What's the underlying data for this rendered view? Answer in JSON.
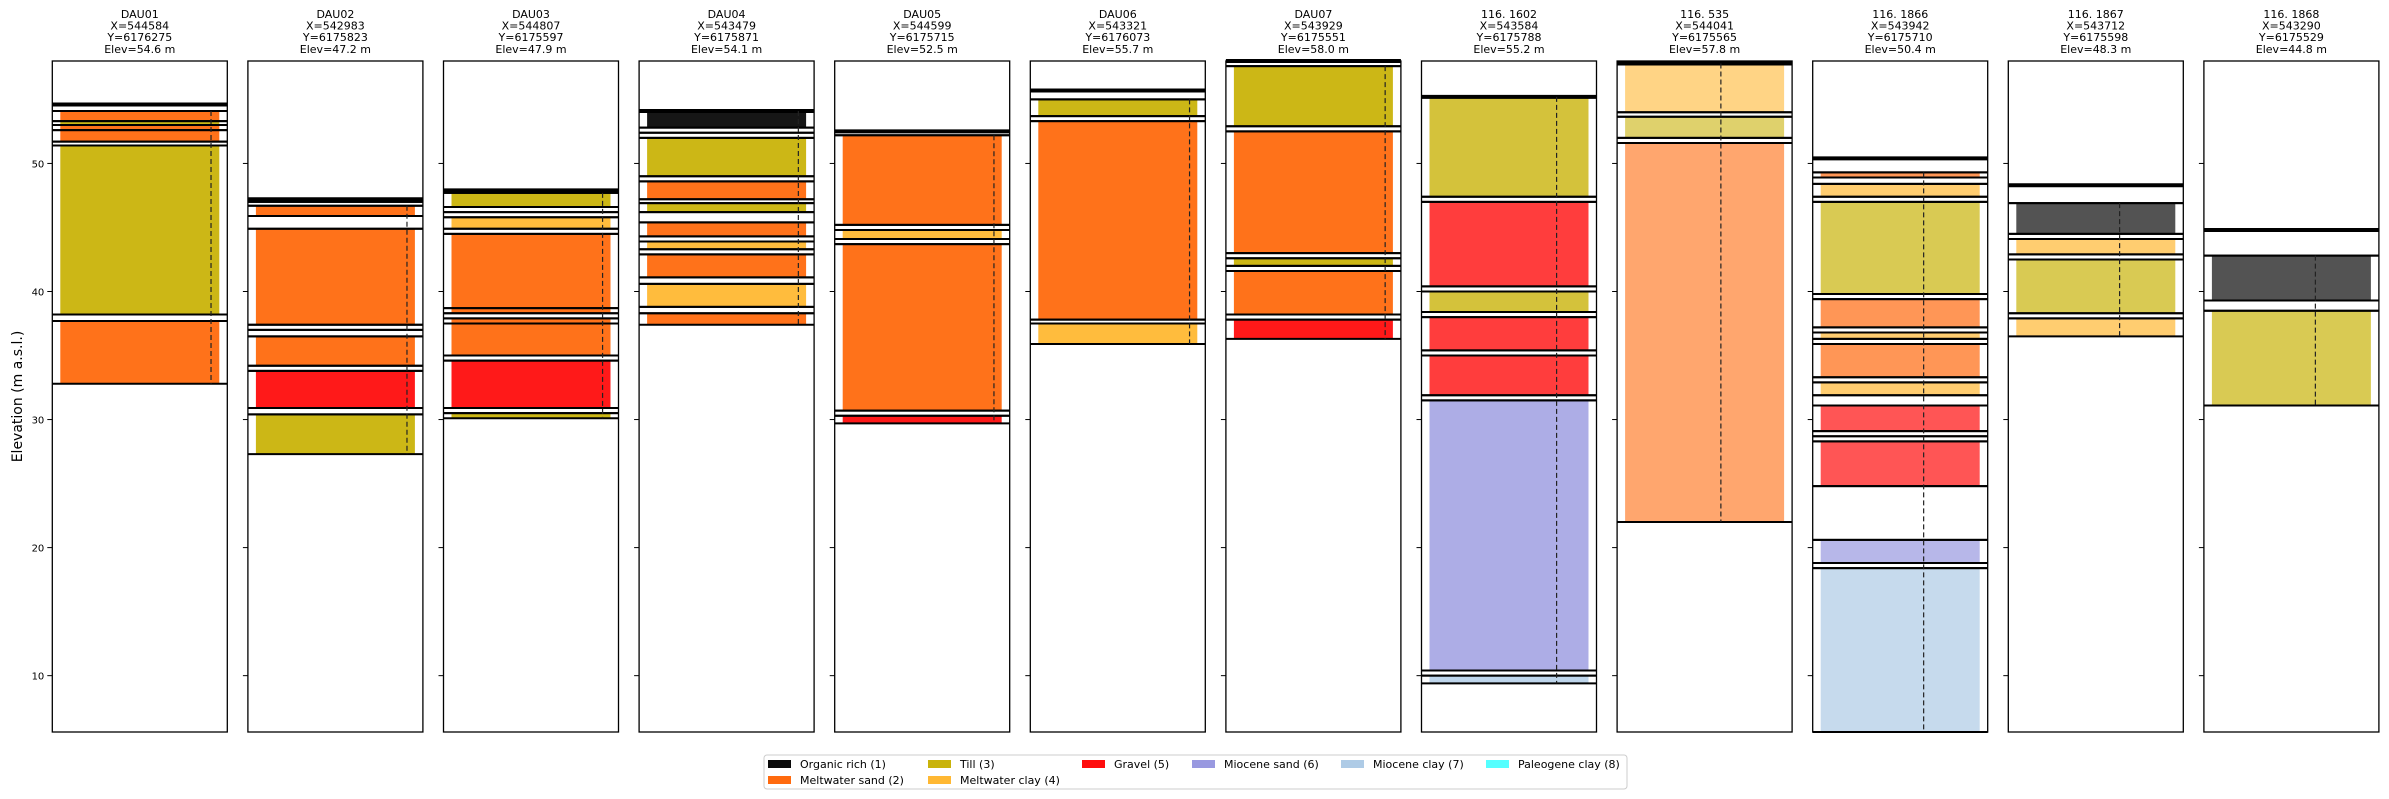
{
  "chart_data": {
    "type": "borehole-log",
    "ylabel": "Elevation (m a.s.l.)",
    "ylim": [
      5.6,
      58.0
    ],
    "yticks": [
      10,
      20,
      30,
      40,
      50
    ],
    "grid": false,
    "legend_position": "bottom-center",
    "legend": [
      {
        "code": 1,
        "label": "Organic rich (1)",
        "color": "#0a0a0a"
      },
      {
        "code": 2,
        "label": "Meltwater sand (2)",
        "color": "#ff6a0e"
      },
      {
        "code": 3,
        "label": "Till (3)",
        "color": "#c9b30a"
      },
      {
        "code": 4,
        "label": "Meltwater clay (4)",
        "color": "#ffb833"
      },
      {
        "code": 5,
        "label": "Gravel (5)",
        "color": "#ff0d0d"
      },
      {
        "code": 6,
        "label": "Miocene sand (6)",
        "color": "#9999e0"
      },
      {
        "code": 7,
        "label": "Miocene clay (7)",
        "color": "#aecbe6"
      },
      {
        "code": 8,
        "label": "Paleogene clay (8)",
        "color": "#55ffff"
      }
    ],
    "boreholes": [
      {
        "name": "DAU01",
        "x_label": "X=544584",
        "y_label": "Y=6176275",
        "elev_label": "Elev=54.6 m",
        "fill_alpha": 0.95,
        "layers": [
          [
            54.6,
            54.1,
            null
          ],
          [
            54.1,
            53.3,
            2
          ],
          [
            53.3,
            53.0,
            3
          ],
          [
            53.0,
            52.6,
            2
          ],
          [
            52.6,
            51.7,
            2
          ],
          [
            51.7,
            51.4,
            null
          ],
          [
            51.4,
            38.2,
            3
          ],
          [
            38.2,
            37.7,
            null
          ],
          [
            37.7,
            32.8,
            2
          ]
        ]
      },
      {
        "name": "DAU02",
        "x_label": "X=542983",
        "y_label": "Y=6175823",
        "elev_label": "Elev=47.2 m",
        "fill_alpha": 0.95,
        "layers": [
          [
            47.2,
            47.0,
            null
          ],
          [
            47.0,
            46.7,
            null
          ],
          [
            46.7,
            45.9,
            2
          ],
          [
            45.9,
            44.9,
            null
          ],
          [
            44.9,
            37.4,
            2
          ],
          [
            37.4,
            37.0,
            null
          ],
          [
            37.0,
            36.5,
            null
          ],
          [
            36.5,
            34.2,
            2
          ],
          [
            34.2,
            33.8,
            null
          ],
          [
            33.8,
            30.9,
            5
          ],
          [
            30.9,
            30.4,
            null
          ],
          [
            30.4,
            27.3,
            3
          ]
        ]
      },
      {
        "name": "DAU03",
        "x_label": "X=544807",
        "y_label": "Y=6175597",
        "elev_label": "Elev=47.9 m",
        "fill_alpha": 0.95,
        "layers": [
          [
            47.9,
            47.7,
            null
          ],
          [
            47.7,
            46.6,
            3
          ],
          [
            46.6,
            46.2,
            null
          ],
          [
            46.2,
            45.8,
            null
          ],
          [
            45.8,
            44.9,
            4
          ],
          [
            44.9,
            44.5,
            null
          ],
          [
            44.5,
            38.7,
            2
          ],
          [
            38.7,
            38.3,
            2
          ],
          [
            38.3,
            37.9,
            null
          ],
          [
            37.9,
            37.5,
            2
          ],
          [
            37.5,
            35.0,
            2
          ],
          [
            35.0,
            34.6,
            null
          ],
          [
            34.6,
            30.9,
            5
          ],
          [
            30.9,
            30.5,
            null
          ],
          [
            30.5,
            30.1,
            3
          ]
        ]
      },
      {
        "name": "DAU04",
        "x_label": "X=543479",
        "y_label": "Y=6175871",
        "elev_label": "Elev=54.1 m",
        "fill_alpha": 0.95,
        "layers": [
          [
            54.1,
            52.8,
            1
          ],
          [
            52.8,
            52.4,
            null
          ],
          [
            52.4,
            52.0,
            null
          ],
          [
            52.0,
            49.0,
            3
          ],
          [
            49.0,
            48.6,
            null
          ],
          [
            48.6,
            47.2,
            2
          ],
          [
            47.2,
            46.9,
            null
          ],
          [
            46.9,
            46.2,
            3
          ],
          [
            46.2,
            45.4,
            null
          ],
          [
            45.4,
            44.3,
            2
          ],
          [
            44.3,
            43.9,
            null
          ],
          [
            43.9,
            43.3,
            4
          ],
          [
            43.3,
            42.9,
            null
          ],
          [
            42.9,
            41.1,
            2
          ],
          [
            41.1,
            40.6,
            null
          ],
          [
            40.6,
            38.8,
            4
          ],
          [
            38.8,
            38.3,
            null
          ],
          [
            38.3,
            37.4,
            2
          ]
        ]
      },
      {
        "name": "DAU05",
        "x_label": "X=544599",
        "y_label": "Y=6175715",
        "elev_label": "Elev=52.5 m",
        "fill_alpha": 0.95,
        "layers": [
          [
            52.5,
            52.2,
            null
          ],
          [
            52.2,
            45.2,
            2
          ],
          [
            45.2,
            44.8,
            null
          ],
          [
            44.8,
            44.1,
            4
          ],
          [
            44.1,
            43.7,
            null
          ],
          [
            43.7,
            30.7,
            2
          ],
          [
            30.7,
            30.3,
            null
          ],
          [
            30.3,
            29.7,
            5
          ]
        ]
      },
      {
        "name": "DAU06",
        "x_label": "X=543321",
        "y_label": "Y=6176073",
        "elev_label": "Elev=55.7 m",
        "fill_alpha": 0.95,
        "layers": [
          [
            55.7,
            55.0,
            null
          ],
          [
            55.0,
            53.7,
            3
          ],
          [
            53.7,
            53.3,
            null
          ],
          [
            53.3,
            37.8,
            2
          ],
          [
            37.8,
            37.5,
            null
          ],
          [
            37.5,
            35.9,
            4
          ]
        ]
      },
      {
        "name": "DAU07",
        "x_label": "X=543929",
        "y_label": "Y=6175551",
        "elev_label": "Elev=58.0 m",
        "fill_alpha": 0.95,
        "layers": [
          [
            58.0,
            57.6,
            null
          ],
          [
            57.6,
            52.9,
            3
          ],
          [
            52.9,
            52.5,
            null
          ],
          [
            52.5,
            43.0,
            2
          ],
          [
            43.0,
            42.6,
            null
          ],
          [
            42.6,
            42.0,
            3
          ],
          [
            42.0,
            41.6,
            null
          ],
          [
            41.6,
            38.2,
            2
          ],
          [
            38.2,
            37.8,
            null
          ],
          [
            37.8,
            36.3,
            5
          ]
        ]
      },
      {
        "name": "116. 1602",
        "x_label": "X=543584",
        "y_label": "Y=6175788",
        "elev_label": "Elev=55.2 m",
        "fill_alpha": 0.8,
        "layers": [
          [
            55.2,
            47.4,
            3
          ],
          [
            47.4,
            47.0,
            null
          ],
          [
            47.0,
            40.4,
            5
          ],
          [
            40.4,
            40.0,
            null
          ],
          [
            40.0,
            38.4,
            3
          ],
          [
            38.4,
            38.0,
            null
          ],
          [
            38.0,
            35.4,
            5
          ],
          [
            35.4,
            35.0,
            null
          ],
          [
            35.0,
            31.9,
            5
          ],
          [
            31.9,
            31.5,
            null
          ],
          [
            31.5,
            10.4,
            6
          ],
          [
            10.4,
            10.0,
            null
          ],
          [
            10.0,
            9.4,
            7
          ]
        ]
      },
      {
        "name": "116. 535",
        "x_label": "X=544041",
        "y_label": "Y=6175565",
        "elev_label": "Elev=57.8 m",
        "fill_alpha": 0.6,
        "layers": [
          [
            57.8,
            54.0,
            4
          ],
          [
            54.0,
            53.65,
            null
          ],
          [
            53.65,
            52.0,
            3
          ],
          [
            52.0,
            51.6,
            null
          ],
          [
            51.6,
            22.0,
            2
          ]
        ]
      },
      {
        "name": "116. 1866",
        "x_label": "X=543942",
        "y_label": "Y=6175710",
        "elev_label": "Elev=50.4 m",
        "fill_alpha": 0.7,
        "layers": [
          [
            50.4,
            49.3,
            null
          ],
          [
            49.3,
            48.9,
            2
          ],
          [
            48.9,
            48.4,
            null
          ],
          [
            48.4,
            47.4,
            4
          ],
          [
            47.4,
            47.0,
            null
          ],
          [
            47.0,
            39.8,
            3
          ],
          [
            39.8,
            39.4,
            null
          ],
          [
            39.4,
            37.2,
            2
          ],
          [
            37.2,
            36.8,
            null
          ],
          [
            36.8,
            36.3,
            4
          ],
          [
            36.3,
            35.9,
            null
          ],
          [
            35.9,
            33.3,
            2
          ],
          [
            33.3,
            32.9,
            null
          ],
          [
            32.9,
            31.9,
            4
          ],
          [
            31.9,
            31.1,
            null
          ],
          [
            31.1,
            29.1,
            5
          ],
          [
            29.1,
            28.7,
            null
          ],
          [
            28.7,
            28.3,
            null
          ],
          [
            28.3,
            24.8,
            5
          ],
          [
            24.8,
            20.6,
            null
          ],
          [
            20.6,
            18.8,
            6
          ],
          [
            18.8,
            18.4,
            null
          ],
          [
            18.4,
            5.6,
            7
          ]
        ]
      },
      {
        "name": "116. 1867",
        "x_label": "X=543712",
        "y_label": "Y=6175598",
        "elev_label": "Elev=48.3 m",
        "fill_alpha": 0.7,
        "layers": [
          [
            48.3,
            46.9,
            null
          ],
          [
            46.9,
            44.5,
            1
          ],
          [
            44.5,
            44.1,
            null
          ],
          [
            44.1,
            42.9,
            4
          ],
          [
            42.9,
            42.5,
            null
          ],
          [
            42.5,
            38.3,
            3
          ],
          [
            38.3,
            37.9,
            null
          ],
          [
            37.9,
            36.5,
            4
          ]
        ]
      },
      {
        "name": "116. 1868",
        "x_label": "X=543290",
        "y_label": "Y=6175529",
        "elev_label": "Elev=44.8 m",
        "fill_alpha": 0.7,
        "layers": [
          [
            44.8,
            42.8,
            null
          ],
          [
            42.8,
            39.3,
            1
          ],
          [
            39.3,
            38.5,
            null
          ],
          [
            38.5,
            31.1,
            3
          ]
        ]
      }
    ]
  }
}
